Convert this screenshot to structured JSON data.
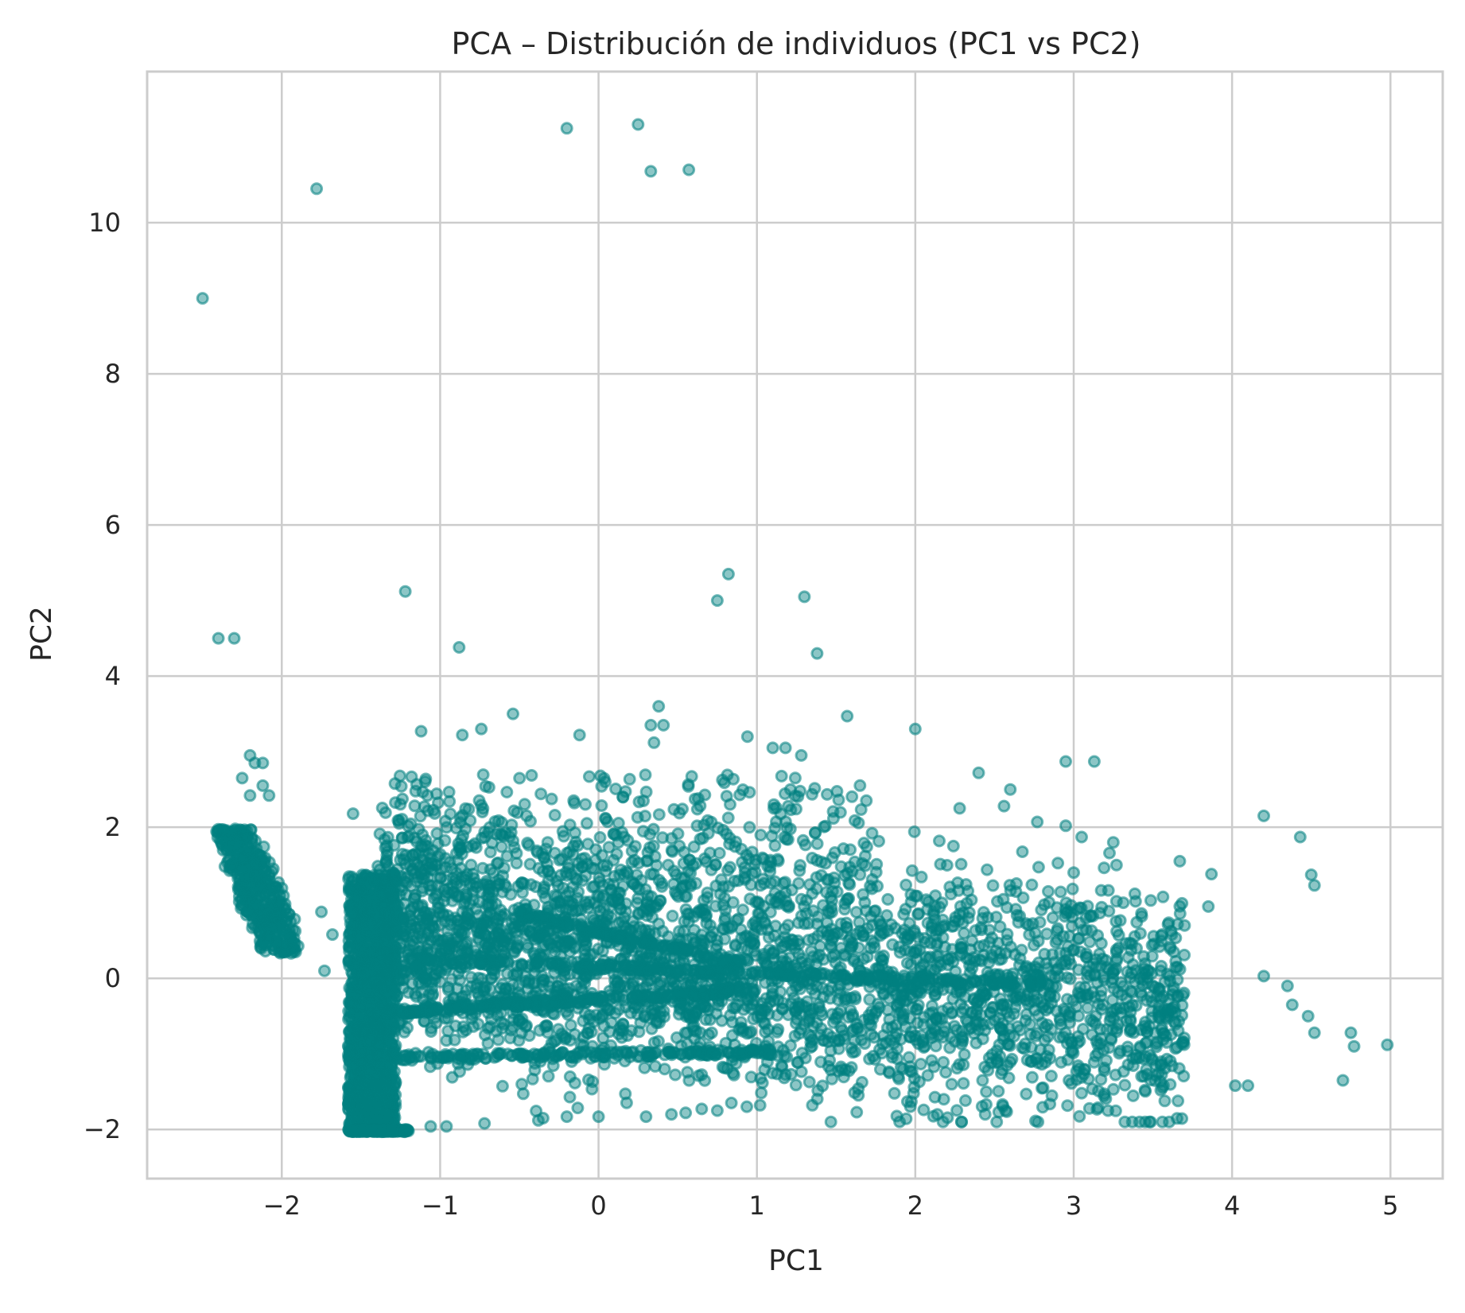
{
  "chart_data": {
    "type": "scatter",
    "title": "PCA – Distribución de individuos (PC1 vs PC2)",
    "xlabel": "PC1",
    "ylabel": "PC2",
    "xlim": [
      -2.85,
      5.33
    ],
    "ylim": [
      -2.65,
      12.0
    ],
    "x_ticks": [
      {
        "value": -2,
        "label": "−2"
      },
      {
        "value": -1,
        "label": "−1"
      },
      {
        "value": 0,
        "label": "0"
      },
      {
        "value": 1,
        "label": "1"
      },
      {
        "value": 2,
        "label": "2"
      },
      {
        "value": 3,
        "label": "3"
      },
      {
        "value": 4,
        "label": "4"
      },
      {
        "value": 5,
        "label": "5"
      }
    ],
    "y_ticks": [
      {
        "value": -2,
        "label": "−2"
      },
      {
        "value": 0,
        "label": "0"
      },
      {
        "value": 2,
        "label": "2"
      },
      {
        "value": 4,
        "label": "4"
      },
      {
        "value": 6,
        "label": "6"
      },
      {
        "value": 8,
        "label": "8"
      },
      {
        "value": 10,
        "label": "10"
      }
    ],
    "grid": true,
    "legend": "none",
    "marker_color": "#008080",
    "marker_alpha": 0.45,
    "series": [
      {
        "points": [
          [
            -2.5,
            9.0
          ],
          [
            -1.78,
            10.45
          ],
          [
            -0.2,
            11.25
          ],
          [
            0.25,
            11.3
          ],
          [
            0.33,
            10.68
          ],
          [
            0.57,
            10.7
          ],
          [
            -2.4,
            4.5
          ],
          [
            -2.3,
            4.5
          ],
          [
            -1.22,
            5.12
          ],
          [
            -0.88,
            4.38
          ],
          [
            0.75,
            5.0
          ],
          [
            0.82,
            5.35
          ],
          [
            1.3,
            5.05
          ],
          [
            1.38,
            4.3
          ],
          [
            1.57,
            3.47
          ],
          [
            2.0,
            3.3
          ],
          [
            -1.12,
            3.27
          ],
          [
            -0.86,
            3.22
          ],
          [
            -0.74,
            3.3
          ],
          [
            -0.54,
            3.5
          ],
          [
            -0.12,
            3.22
          ],
          [
            0.33,
            3.35
          ],
          [
            0.38,
            3.6
          ],
          [
            0.35,
            3.12
          ],
          [
            0.41,
            3.35
          ],
          [
            0.94,
            3.2
          ],
          [
            1.1,
            3.05
          ],
          [
            1.18,
            3.05
          ],
          [
            1.28,
            2.95
          ],
          [
            2.95,
            2.87
          ],
          [
            3.13,
            2.87
          ],
          [
            2.4,
            2.72
          ],
          [
            2.6,
            2.5
          ],
          [
            2.56,
            2.28
          ],
          [
            2.28,
            2.25
          ],
          [
            2.77,
            2.07
          ],
          [
            2.95,
            2.02
          ],
          [
            3.05,
            1.87
          ],
          [
            3.25,
            1.8
          ],
          [
            4.2,
            2.15
          ],
          [
            4.43,
            1.87
          ],
          [
            4.5,
            1.37
          ],
          [
            4.52,
            1.23
          ],
          [
            3.87,
            1.38
          ],
          [
            3.67,
            1.55
          ],
          [
            3.85,
            0.95
          ],
          [
            3.27,
            1.5
          ],
          [
            3.0,
            1.4
          ],
          [
            4.35,
            -0.1
          ],
          [
            4.2,
            0.03
          ],
          [
            4.38,
            -0.35
          ],
          [
            4.48,
            -0.5
          ],
          [
            4.52,
            -0.72
          ],
          [
            4.75,
            -0.72
          ],
          [
            4.77,
            -0.9
          ],
          [
            4.98,
            -0.88
          ],
          [
            4.7,
            -1.35
          ],
          [
            4.02,
            -1.42
          ],
          [
            4.1,
            -1.42
          ],
          [
            3.55,
            -1.48
          ],
          [
            3.45,
            -1.48
          ],
          [
            3.05,
            -1.52
          ],
          [
            2.7,
            -1.53
          ],
          [
            2.18,
            -1.6
          ],
          [
            1.95,
            -1.63
          ],
          [
            1.35,
            -1.68
          ],
          [
            1.02,
            -1.68
          ],
          [
            0.75,
            -1.75
          ],
          [
            0.55,
            -1.78
          ],
          [
            0.46,
            -1.8
          ],
          [
            0.3,
            -1.83
          ],
          [
            0.0,
            -1.83
          ],
          [
            -0.2,
            -1.83
          ],
          [
            -0.35,
            -1.85
          ],
          [
            -0.72,
            -1.92
          ],
          [
            -0.38,
            -1.88
          ],
          [
            -0.96,
            -1.96
          ],
          [
            -1.06,
            -1.96
          ],
          [
            -2.25,
            2.65
          ],
          [
            -2.2,
            2.95
          ],
          [
            -2.17,
            2.85
          ],
          [
            -2.12,
            2.85
          ],
          [
            -2.12,
            2.55
          ],
          [
            -2.2,
            2.42
          ],
          [
            -2.08,
            2.42
          ],
          [
            -1.75,
            0.88
          ],
          [
            -1.68,
            0.58
          ],
          [
            -1.73,
            0.1
          ],
          [
            -1.55,
            2.18
          ]
        ]
      }
    ]
  }
}
